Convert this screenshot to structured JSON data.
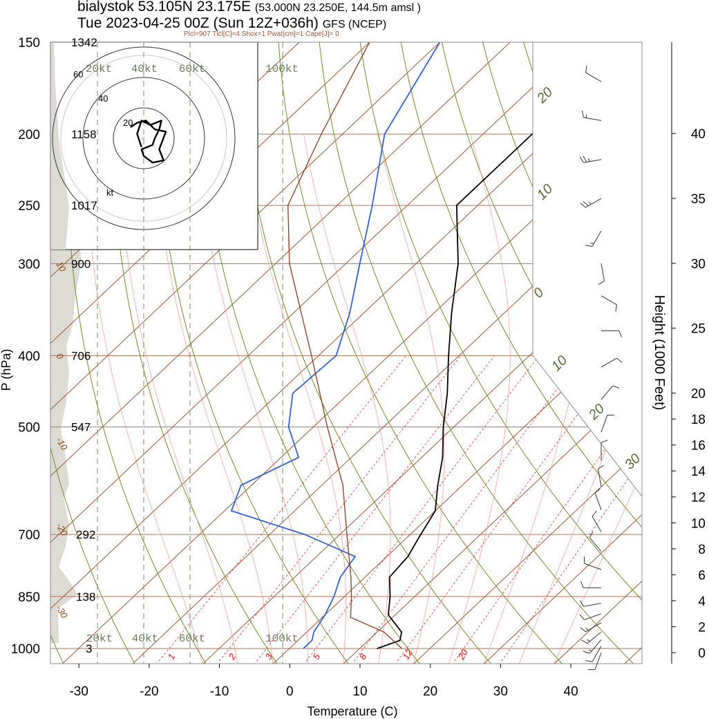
{
  "header": {
    "location": "bialystok 53.105N 23.175E",
    "location_detail": "(53.000N 23.250E, 144.5m amsl )",
    "valid_time": "Tue 2023-04-25 00Z (Sun 12Z+036h)",
    "model": "GFS (NCEP)",
    "indices": "Plcl=907 Tlcl[C]=4 Shox=1 Pwat[cm]=1 Cape[J]= 0"
  },
  "colors": {
    "temperature_line": "#000000",
    "dewpoint_line": "#3060e0",
    "parcel_line": "#8b3a1a",
    "isobar": "#b07050",
    "isotherm": "#a0522d",
    "dry_adiabat": "#6b8e23",
    "moist_adiabat": "#ff8080",
    "mixing_ratio": "#ff0000",
    "hodo_speed": "#2e8b57",
    "terrain_shade": "#dcdcd4",
    "panel_border": "#555555"
  },
  "chart_data": {
    "type": "line",
    "xlabel": "Temperature (C)",
    "ylabel": "P (hPa)",
    "right_ylabel": "Height (1000 Feet)",
    "x_range": [
      -34,
      46
    ],
    "p_range": [
      1040,
      150
    ],
    "pressure_ticks": [
      1000,
      850,
      700,
      500,
      400,
      300,
      250,
      200,
      150
    ],
    "pressure_heights_dam": [
      {
        "p": 150,
        "label": "1342"
      },
      {
        "p": 200,
        "label": "1158"
      },
      {
        "p": 250,
        "label": "1017"
      },
      {
        "p": 300,
        "label": "900"
      },
      {
        "p": 400,
        "label": "706"
      },
      {
        "p": 500,
        "label": "547"
      },
      {
        "p": 700,
        "label": "292"
      },
      {
        "p": 850,
        "label": "138"
      },
      {
        "p": 1000,
        "label": "3"
      }
    ],
    "temp_ticks": [
      -30,
      -20,
      -10,
      0,
      10,
      20,
      30,
      40
    ],
    "height_ticks_kft": [
      0,
      2,
      4,
      6,
      8,
      10,
      12,
      14,
      16,
      18,
      20,
      25,
      30,
      35,
      40
    ],
    "isotherm_labels": [
      {
        "t": -30,
        "p": 880,
        "label": "-30"
      },
      {
        "t": -20,
        "p": 680,
        "label": "-20"
      },
      {
        "t": -10,
        "p": 520,
        "label": "-10"
      },
      {
        "t": 0,
        "p": 400,
        "label": "0"
      },
      {
        "t": 10,
        "p": 300,
        "label": "10"
      }
    ],
    "dry_adiabat_labels": [
      {
        "label": "20",
        "p": 168
      },
      {
        "label": "10",
        "p": 225
      },
      {
        "label": "0",
        "p": 335
      },
      {
        "label": "10",
        "p": 425
      },
      {
        "label": "20",
        "p": 490
      },
      {
        "label": "30",
        "p": 575
      }
    ],
    "mixing_ratio_labels": [
      "1",
      "2",
      "3",
      "5",
      "8",
      "12",
      "20"
    ],
    "wind_speed_guides_kt": [
      "20kt",
      "40kt",
      "60kt",
      "100kt"
    ],
    "series": [
      {
        "name": "temperature",
        "points": [
          {
            "p": 1000,
            "t": 12.5
          },
          {
            "p": 975,
            "t": 14.5
          },
          {
            "p": 950,
            "t": 13.5
          },
          {
            "p": 900,
            "t": 9.0
          },
          {
            "p": 850,
            "t": 6.5
          },
          {
            "p": 800,
            "t": 3.5
          },
          {
            "p": 750,
            "t": 3.0
          },
          {
            "p": 700,
            "t": 1.5
          },
          {
            "p": 650,
            "t": 0.0
          },
          {
            "p": 600,
            "t": -3.5
          },
          {
            "p": 550,
            "t": -7.0
          },
          {
            "p": 500,
            "t": -11.5
          },
          {
            "p": 450,
            "t": -16.0
          },
          {
            "p": 400,
            "t": -21.5
          },
          {
            "p": 350,
            "t": -27.5
          },
          {
            "p": 300,
            "t": -34.0
          },
          {
            "p": 250,
            "t": -43.0
          },
          {
            "p": 200,
            "t": -43.0
          },
          {
            "p": 150,
            "t": -44.0
          }
        ]
      },
      {
        "name": "dewpoint",
        "points": [
          {
            "p": 1000,
            "t": 2.0
          },
          {
            "p": 975,
            "t": 2.0
          },
          {
            "p": 950,
            "t": 1.0
          },
          {
            "p": 900,
            "t": 0.0
          },
          {
            "p": 850,
            "t": -1.5
          },
          {
            "p": 800,
            "t": -3.5
          },
          {
            "p": 750,
            "t": -4.5
          },
          {
            "p": 700,
            "t": -15.0
          },
          {
            "p": 650,
            "t": -29.0
          },
          {
            "p": 600,
            "t": -31.5
          },
          {
            "p": 550,
            "t": -27.5
          },
          {
            "p": 500,
            "t": -33.5
          },
          {
            "p": 450,
            "t": -38.0
          },
          {
            "p": 400,
            "t": -37.5
          },
          {
            "p": 350,
            "t": -42.0
          },
          {
            "p": 300,
            "t": -48.0
          },
          {
            "p": 250,
            "t": -55.0
          },
          {
            "p": 200,
            "t": -64.0
          },
          {
            "p": 150,
            "t": -70.0
          }
        ]
      },
      {
        "name": "parcel",
        "points": [
          {
            "p": 1000,
            "t": 16.0
          },
          {
            "p": 950,
            "t": 11.0
          },
          {
            "p": 907,
            "t": 4.0
          },
          {
            "p": 850,
            "t": 1.0
          },
          {
            "p": 800,
            "t": -2.0
          },
          {
            "p": 700,
            "t": -9.0
          },
          {
            "p": 600,
            "t": -17.0
          },
          {
            "p": 500,
            "t": -28.0
          },
          {
            "p": 400,
            "t": -41.0
          },
          {
            "p": 300,
            "t": -58.0
          },
          {
            "p": 250,
            "t": -67.0
          },
          {
            "p": 200,
            "t": -73.0
          },
          {
            "p": 150,
            "t": -80.0
          }
        ]
      }
    ],
    "wind_barbs": [
      {
        "h_kft": 0.0,
        "dir": 200,
        "spd": 10
      },
      {
        "h_kft": 0.5,
        "dir": 210,
        "spd": 12
      },
      {
        "h_kft": 1.0,
        "dir": 220,
        "spd": 15
      },
      {
        "h_kft": 1.6,
        "dir": 230,
        "spd": 15
      },
      {
        "h_kft": 2.3,
        "dir": 240,
        "spd": 15
      },
      {
        "h_kft": 3.0,
        "dir": 250,
        "spd": 12
      },
      {
        "h_kft": 3.8,
        "dir": 260,
        "spd": 10
      },
      {
        "h_kft": 5.0,
        "dir": 270,
        "spd": 10
      },
      {
        "h_kft": 6.4,
        "dir": 290,
        "spd": 10
      },
      {
        "h_kft": 7.8,
        "dir": 320,
        "spd": 12
      },
      {
        "h_kft": 9.3,
        "dir": 330,
        "spd": 10
      },
      {
        "h_kft": 11.0,
        "dir": 340,
        "spd": 10
      },
      {
        "h_kft": 12.8,
        "dir": 350,
        "spd": 12
      },
      {
        "h_kft": 14.8,
        "dir": 360,
        "spd": 12
      },
      {
        "h_kft": 17.0,
        "dir": 20,
        "spd": 10
      },
      {
        "h_kft": 19.5,
        "dir": 40,
        "spd": 10
      },
      {
        "h_kft": 22.0,
        "dir": 60,
        "spd": 10
      },
      {
        "h_kft": 24.8,
        "dir": 90,
        "spd": 10
      },
      {
        "h_kft": 27.5,
        "dir": 120,
        "spd": 10
      },
      {
        "h_kft": 30.0,
        "dir": 170,
        "spd": 10
      },
      {
        "h_kft": 32.5,
        "dir": 210,
        "spd": 15
      },
      {
        "h_kft": 35.0,
        "dir": 240,
        "spd": 25
      },
      {
        "h_kft": 38.0,
        "dir": 260,
        "spd": 25
      },
      {
        "h_kft": 41.0,
        "dir": 280,
        "spd": 15
      },
      {
        "h_kft": 44.0,
        "dir": 300,
        "spd": 10
      }
    ],
    "hodograph": {
      "ring_labels": [
        "20",
        "40",
        "60"
      ],
      "unit_label": "kt",
      "points": [
        {
          "u": -1,
          "v": -4
        },
        {
          "u": -3,
          "v": 2
        },
        {
          "u": -1,
          "v": 8
        },
        {
          "u": 3,
          "v": 6
        },
        {
          "u": 8,
          "v": 8
        },
        {
          "u": 7,
          "v": 4
        },
        {
          "u": 5,
          "v": 0
        },
        {
          "u": 4,
          "v": -3
        },
        {
          "u": -1,
          "v": -5
        },
        {
          "u": 0,
          "v": -8
        },
        {
          "u": 4,
          "v": -11
        },
        {
          "u": 9,
          "v": -10
        },
        {
          "u": 7,
          "v": -5
        },
        {
          "u": 10,
          "v": 3
        },
        {
          "u": 5,
          "v": 4
        },
        {
          "u": 1,
          "v": 8
        },
        {
          "u": -3,
          "v": 7
        },
        {
          "u": -6,
          "v": 5
        }
      ]
    }
  }
}
